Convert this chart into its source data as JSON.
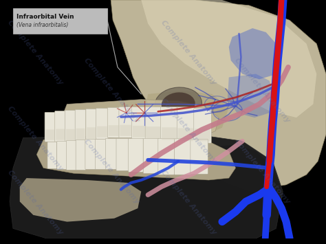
{
  "background_color": "#000000",
  "title_box": {
    "text_line1": "Infraorbital Vein",
    "text_line2": "(Vena infraorbitalis)",
    "box_color": "#cccccc",
    "text_color": "#111111",
    "italic_color": "#333333"
  },
  "watermark_text": "Complete Anatomy",
  "watermark_color": "#5566aa",
  "watermark_alpha": 0.22,
  "skull_base": "#c8bfa0",
  "skull_light": "#ddd5b8",
  "skull_shadow": "#9a8f72",
  "skull_dark": "#7a7060",
  "jaw_dark": "#2a2a2a",
  "jaw_bone": "#b8ad90",
  "teeth_main": "#e8e5d8",
  "teeth_shadow": "#c0bba8",
  "vein_blue": "#1a3aee",
  "vein_blue2": "#2244dd",
  "vein_red": "#dd1111",
  "vein_pink": "#c47a8a",
  "vein_pink2": "#d090a0",
  "vein_small_blue": "#4455cc",
  "vein_small_red": "#aa2222",
  "vein_small_purple": "#6655aa",
  "plexus_blue": "#3344bb",
  "figsize": [
    4.74,
    3.55
  ],
  "dpi": 100
}
